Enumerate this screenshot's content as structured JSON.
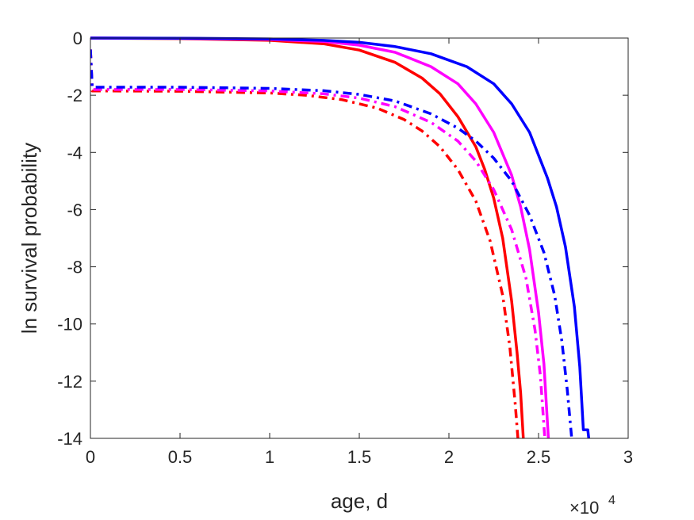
{
  "chart_data": {
    "type": "line",
    "xlabel": "age, d",
    "ylabel": "ln survival probability",
    "xlim": [
      0,
      30000
    ],
    "ylim": [
      -14,
      0
    ],
    "x_ticks": [
      0,
      5000,
      10000,
      15000,
      20000,
      25000,
      30000
    ],
    "x_tick_labels": [
      "0",
      "0.5",
      "1",
      "1.5",
      "2",
      "2.5",
      "3"
    ],
    "x_exponent_label": {
      "base": "×10",
      "power": "4"
    },
    "y_ticks": [
      -14,
      -12,
      -10,
      -8,
      -6,
      -4,
      -2,
      0
    ],
    "y_tick_labels": [
      "-14",
      "-12",
      "-10",
      "-8",
      "-6",
      "-4",
      "-2",
      "0"
    ],
    "grid": false,
    "box": true,
    "series": [
      {
        "color": "#ff0000",
        "style": "solid",
        "points": [
          [
            0,
            0
          ],
          [
            5000,
            -0.02
          ],
          [
            10000,
            -0.08
          ],
          [
            13000,
            -0.2
          ],
          [
            15000,
            -0.42
          ],
          [
            17000,
            -0.85
          ],
          [
            18500,
            -1.4
          ],
          [
            19500,
            -1.95
          ],
          [
            20500,
            -2.75
          ],
          [
            21500,
            -3.8
          ],
          [
            22000,
            -4.6
          ],
          [
            22500,
            -5.6
          ],
          [
            23000,
            -7.0
          ],
          [
            23500,
            -9.2
          ],
          [
            23800,
            -11.0
          ],
          [
            24000,
            -12.4
          ],
          [
            24150,
            -14
          ]
        ]
      },
      {
        "color": "#ff00ff",
        "style": "solid",
        "points": [
          [
            0,
            0
          ],
          [
            5000,
            -0.01
          ],
          [
            10000,
            -0.05
          ],
          [
            13000,
            -0.12
          ],
          [
            15000,
            -0.25
          ],
          [
            17000,
            -0.5
          ],
          [
            19000,
            -1.0
          ],
          [
            20500,
            -1.6
          ],
          [
            21500,
            -2.3
          ],
          [
            22500,
            -3.3
          ],
          [
            23500,
            -4.8
          ],
          [
            24000,
            -5.9
          ],
          [
            24500,
            -7.4
          ],
          [
            25000,
            -9.6
          ],
          [
            25300,
            -11.4
          ],
          [
            25550,
            -14
          ]
        ]
      },
      {
        "color": "#0000ff",
        "style": "solid",
        "points": [
          [
            0,
            0
          ],
          [
            5000,
            -0.005
          ],
          [
            10000,
            -0.03
          ],
          [
            13000,
            -0.08
          ],
          [
            15000,
            -0.15
          ],
          [
            17000,
            -0.3
          ],
          [
            19000,
            -0.55
          ],
          [
            21000,
            -1.0
          ],
          [
            22500,
            -1.6
          ],
          [
            23500,
            -2.3
          ],
          [
            24500,
            -3.3
          ],
          [
            25500,
            -4.9
          ],
          [
            26000,
            -5.9
          ],
          [
            26500,
            -7.3
          ],
          [
            27000,
            -9.4
          ],
          [
            27300,
            -11.5
          ],
          [
            27500,
            -13.7
          ],
          [
            27750,
            -13.7
          ],
          [
            27800,
            -14
          ]
        ]
      },
      {
        "color": "#ff0000",
        "style": "dashdot",
        "points": [
          [
            0,
            -0.4
          ],
          [
            100,
            -1.85
          ],
          [
            5000,
            -1.86
          ],
          [
            10000,
            -1.92
          ],
          [
            12000,
            -2.0
          ],
          [
            14000,
            -2.15
          ],
          [
            16000,
            -2.45
          ],
          [
            17500,
            -2.85
          ],
          [
            18500,
            -3.25
          ],
          [
            19500,
            -3.8
          ],
          [
            20500,
            -4.6
          ],
          [
            21500,
            -5.7
          ],
          [
            22300,
            -7.1
          ],
          [
            23000,
            -9.0
          ],
          [
            23400,
            -10.8
          ],
          [
            23700,
            -12.8
          ],
          [
            23850,
            -14
          ]
        ]
      },
      {
        "color": "#ff00ff",
        "style": "dashdot",
        "points": [
          [
            0,
            -0.4
          ],
          [
            100,
            -1.8
          ],
          [
            5000,
            -1.8
          ],
          [
            10000,
            -1.85
          ],
          [
            13000,
            -1.95
          ],
          [
            15000,
            -2.1
          ],
          [
            17000,
            -2.4
          ],
          [
            19000,
            -2.95
          ],
          [
            20500,
            -3.6
          ],
          [
            21500,
            -4.3
          ],
          [
            22500,
            -5.3
          ],
          [
            23500,
            -6.7
          ],
          [
            24300,
            -8.4
          ],
          [
            24800,
            -10.2
          ],
          [
            25100,
            -11.8
          ],
          [
            25350,
            -14
          ]
        ]
      },
      {
        "color": "#0000ff",
        "style": "dashdot",
        "points": [
          [
            0,
            -0.4
          ],
          [
            100,
            -1.72
          ],
          [
            5000,
            -1.72
          ],
          [
            10000,
            -1.76
          ],
          [
            13000,
            -1.84
          ],
          [
            15000,
            -1.97
          ],
          [
            17000,
            -2.2
          ],
          [
            19000,
            -2.65
          ],
          [
            20500,
            -3.15
          ],
          [
            21500,
            -3.6
          ],
          [
            22500,
            -4.2
          ],
          [
            23500,
            -5.0
          ],
          [
            24500,
            -6.2
          ],
          [
            25300,
            -7.5
          ],
          [
            25900,
            -9.0
          ],
          [
            26300,
            -10.6
          ],
          [
            26600,
            -12.3
          ],
          [
            26850,
            -14
          ]
        ]
      }
    ]
  }
}
